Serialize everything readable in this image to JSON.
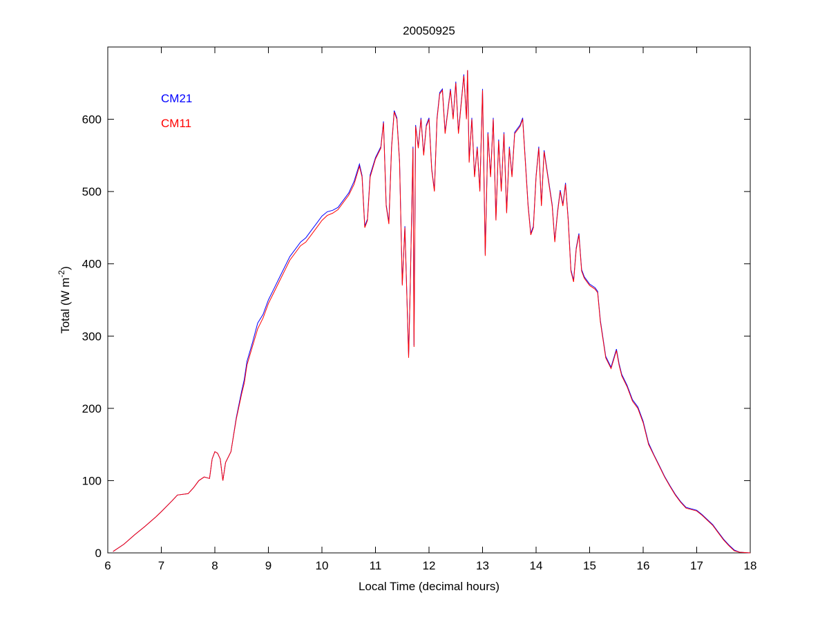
{
  "chart_data": {
    "type": "line",
    "title": "20050925",
    "xlabel": "Local Time (decimal hours)",
    "ylabel": "Total (W m",
    "ylabel_sup": "-2",
    "ylabel_end": ")",
    "xlim": [
      6,
      18
    ],
    "ylim": [
      0,
      700
    ],
    "xticks": [
      6,
      7,
      8,
      9,
      10,
      11,
      12,
      13,
      14,
      15,
      16,
      17,
      18
    ],
    "yticks": [
      0,
      100,
      200,
      300,
      400,
      500,
      600
    ],
    "grid": false,
    "legend_placement": "top-left",
    "colors": {
      "CM21": "#0000ff",
      "CM11": "#ff0000"
    },
    "series": [
      {
        "name": "CM21",
        "x": [
          6.1,
          6.3,
          6.5,
          6.7,
          6.9,
          7.0,
          7.2,
          7.3,
          7.5,
          7.6,
          7.7,
          7.8,
          7.9,
          7.95,
          8.0,
          8.05,
          8.1,
          8.15,
          8.2,
          8.3,
          8.4,
          8.5,
          8.55,
          8.6,
          8.7,
          8.8,
          8.9,
          9.0,
          9.1,
          9.2,
          9.3,
          9.4,
          9.5,
          9.6,
          9.7,
          9.8,
          9.9,
          10.0,
          10.1,
          10.2,
          10.3,
          10.4,
          10.5,
          10.6,
          10.7,
          10.75,
          10.8,
          10.85,
          10.9,
          11.0,
          11.1,
          11.15,
          11.2,
          11.25,
          11.3,
          11.35,
          11.4,
          11.45,
          11.5,
          11.55,
          11.6,
          11.62,
          11.65,
          11.7,
          11.72,
          11.75,
          11.8,
          11.85,
          11.9,
          11.95,
          12.0,
          12.05,
          12.1,
          12.15,
          12.2,
          12.25,
          12.3,
          12.4,
          12.45,
          12.5,
          12.55,
          12.6,
          12.65,
          12.7,
          12.72,
          12.75,
          12.8,
          12.85,
          12.9,
          12.95,
          13.0,
          13.05,
          13.1,
          13.15,
          13.2,
          13.25,
          13.3,
          13.35,
          13.4,
          13.45,
          13.5,
          13.55,
          13.6,
          13.7,
          13.75,
          13.8,
          13.85,
          13.9,
          13.95,
          14.0,
          14.05,
          14.1,
          14.15,
          14.2,
          14.3,
          14.35,
          14.4,
          14.45,
          14.5,
          14.55,
          14.6,
          14.65,
          14.7,
          14.75,
          14.8,
          14.85,
          14.9,
          15.0,
          15.1,
          15.15,
          15.2,
          15.3,
          15.4,
          15.5,
          15.55,
          15.6,
          15.7,
          15.8,
          15.9,
          16.0,
          16.1,
          16.2,
          16.3,
          16.4,
          16.5,
          16.6,
          16.7,
          16.8,
          16.9,
          17.0,
          17.1,
          17.2,
          17.3,
          17.4,
          17.5,
          17.6,
          17.7,
          17.8,
          18.0
        ],
        "y": [
          2,
          12,
          25,
          37,
          50,
          57,
          72,
          80,
          82,
          90,
          100,
          105,
          103,
          130,
          140,
          138,
          130,
          100,
          125,
          140,
          187,
          224,
          240,
          265,
          290,
          318,
          330,
          350,
          365,
          380,
          395,
          410,
          420,
          430,
          436,
          446,
          456,
          466,
          472,
          474,
          478,
          488,
          498,
          514,
          538,
          522,
          452,
          462,
          523,
          547,
          562,
          597,
          482,
          457,
          562,
          612,
          602,
          542,
          372,
          452,
          322,
          272,
          372,
          562,
          287,
          592,
          562,
          602,
          552,
          592,
          602,
          532,
          502,
          602,
          637,
          642,
          582,
          642,
          602,
          652,
          582,
          622,
          662,
          602,
          668,
          542,
          602,
          522,
          562,
          502,
          642,
          413,
          582,
          522,
          602,
          462,
          572,
          502,
          582,
          472,
          562,
          522,
          582,
          592,
          602,
          542,
          482,
          442,
          452,
          522,
          562,
          482,
          557,
          532,
          482,
          432,
          472,
          502,
          482,
          512,
          462,
          392,
          377,
          422,
          442,
          392,
          382,
          372,
          367,
          362,
          322,
          272,
          257,
          282,
          262,
          247,
          232,
          212,
          202,
          182,
          152,
          136,
          121,
          106,
          93,
          81,
          71,
          63,
          61,
          59,
          53,
          46,
          39,
          29,
          19,
          11,
          4,
          1,
          0
        ]
      },
      {
        "name": "CM11",
        "x": [
          6.1,
          6.3,
          6.5,
          6.7,
          6.9,
          7.0,
          7.2,
          7.3,
          7.5,
          7.6,
          7.7,
          7.8,
          7.9,
          7.95,
          8.0,
          8.05,
          8.1,
          8.15,
          8.2,
          8.3,
          8.4,
          8.5,
          8.55,
          8.6,
          8.7,
          8.8,
          8.9,
          9.0,
          9.1,
          9.2,
          9.3,
          9.4,
          9.5,
          9.6,
          9.7,
          9.8,
          9.9,
          10.0,
          10.1,
          10.2,
          10.3,
          10.4,
          10.5,
          10.6,
          10.7,
          10.75,
          10.8,
          10.85,
          10.9,
          11.0,
          11.1,
          11.15,
          11.2,
          11.25,
          11.3,
          11.35,
          11.4,
          11.45,
          11.5,
          11.55,
          11.6,
          11.62,
          11.65,
          11.7,
          11.72,
          11.75,
          11.8,
          11.85,
          11.9,
          11.95,
          12.0,
          12.05,
          12.1,
          12.15,
          12.2,
          12.25,
          12.3,
          12.4,
          12.45,
          12.5,
          12.55,
          12.6,
          12.65,
          12.7,
          12.72,
          12.75,
          12.8,
          12.85,
          12.9,
          12.95,
          13.0,
          13.05,
          13.1,
          13.15,
          13.2,
          13.25,
          13.3,
          13.35,
          13.4,
          13.45,
          13.5,
          13.55,
          13.6,
          13.7,
          13.75,
          13.8,
          13.85,
          13.9,
          13.95,
          14.0,
          14.05,
          14.1,
          14.15,
          14.2,
          14.3,
          14.35,
          14.4,
          14.45,
          14.5,
          14.55,
          14.6,
          14.65,
          14.7,
          14.75,
          14.8,
          14.85,
          14.9,
          15.0,
          15.1,
          15.15,
          15.2,
          15.3,
          15.4,
          15.5,
          15.55,
          15.6,
          15.7,
          15.8,
          15.9,
          16.0,
          16.1,
          16.2,
          16.3,
          16.4,
          16.5,
          16.6,
          16.7,
          16.8,
          16.9,
          17.0,
          17.1,
          17.2,
          17.3,
          17.4,
          17.5,
          17.6,
          17.7,
          17.8,
          18.0
        ],
        "y": [
          2,
          12,
          25,
          37,
          50,
          57,
          72,
          80,
          82,
          90,
          100,
          105,
          103,
          130,
          140,
          138,
          130,
          100,
          125,
          140,
          185,
          220,
          235,
          260,
          285,
          310,
          325,
          345,
          360,
          375,
          390,
          405,
          415,
          425,
          430,
          440,
          450,
          460,
          467,
          470,
          475,
          485,
          495,
          510,
          535,
          520,
          450,
          460,
          520,
          545,
          560,
          595,
          480,
          455,
          560,
          610,
          600,
          540,
          370,
          450,
          320,
          270,
          370,
          560,
          285,
          590,
          560,
          600,
          550,
          590,
          600,
          530,
          500,
          600,
          635,
          640,
          580,
          640,
          600,
          650,
          580,
          620,
          660,
          600,
          668,
          540,
          600,
          520,
          560,
          500,
          640,
          411,
          580,
          520,
          600,
          460,
          570,
          500,
          580,
          470,
          560,
          520,
          580,
          590,
          600,
          540,
          480,
          440,
          450,
          520,
          560,
          480,
          555,
          530,
          480,
          430,
          470,
          500,
          480,
          510,
          460,
          390,
          375,
          420,
          440,
          390,
          380,
          370,
          365,
          360,
          320,
          270,
          255,
          280,
          260,
          245,
          230,
          210,
          200,
          180,
          150,
          135,
          120,
          105,
          92,
          80,
          70,
          62,
          60,
          58,
          52,
          45,
          38,
          28,
          18,
          10,
          3,
          1,
          0
        ]
      }
    ]
  }
}
